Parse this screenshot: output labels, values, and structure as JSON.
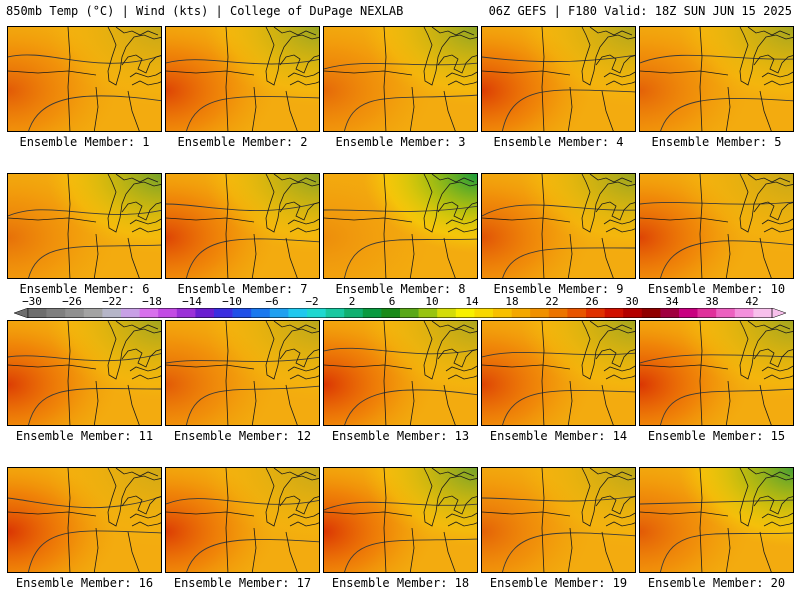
{
  "header": {
    "left": "850mb Temp (°C) | Wind (kts) | College of DuPage NEXLAB",
    "right": "06Z GEFS | F180 Valid: 18Z SUN JUN 15 2025"
  },
  "colorbar": {
    "labels": [
      "−30",
      "−26",
      "−22",
      "−18",
      "−14",
      "−10",
      "−6",
      "−2",
      "2",
      "6",
      "10",
      "14",
      "18",
      "22",
      "26",
      "30",
      "34",
      "38",
      "42"
    ],
    "colors": [
      "#6e6e6e",
      "#7f7f7f",
      "#909090",
      "#a3a3a3",
      "#b5b5c8",
      "#c8a0e6",
      "#d870ec",
      "#c24be4",
      "#9b30d8",
      "#6a1ed0",
      "#3b2fe0",
      "#2050e8",
      "#1a78ee",
      "#20a0f0",
      "#20c8ee",
      "#1ed8d0",
      "#18c8a0",
      "#10b070",
      "#0a9a40",
      "#1a8a1a",
      "#5aa818",
      "#98c410",
      "#d4dc08",
      "#f8f000",
      "#f8d800",
      "#f8c000",
      "#f4a800",
      "#f09000",
      "#ec7400",
      "#e85400",
      "#e03000",
      "#d01000",
      "#b40000",
      "#900000",
      "#a00040",
      "#c80080",
      "#e0309c",
      "#ec60c0",
      "#f490dc",
      "#f8c0ec"
    ]
  },
  "members": [
    {
      "label": "Ensemble Member: 1",
      "warm": 0.55,
      "cool": 0.2
    },
    {
      "label": "Ensemble Member: 2",
      "warm": 0.7,
      "cool": 0.4
    },
    {
      "label": "Ensemble Member: 3",
      "warm": 0.45,
      "cool": 0.45
    },
    {
      "label": "Ensemble Member: 4",
      "warm": 0.75,
      "cool": 0.3
    },
    {
      "label": "Ensemble Member: 5",
      "warm": 0.5,
      "cool": 0.35
    },
    {
      "label": "Ensemble Member: 6",
      "warm": 0.4,
      "cool": 0.55
    },
    {
      "label": "Ensemble Member: 7",
      "warm": 0.7,
      "cool": 0.45
    },
    {
      "label": "Ensemble Member: 8",
      "warm": 0.2,
      "cool": 0.95
    },
    {
      "label": "Ensemble Member: 9",
      "warm": 0.6,
      "cool": 0.4
    },
    {
      "label": "Ensemble Member: 10",
      "warm": 0.7,
      "cool": 0.2
    },
    {
      "label": "Ensemble Member: 11",
      "warm": 0.75,
      "cool": 0.35
    },
    {
      "label": "Ensemble Member: 12",
      "warm": 0.55,
      "cool": 0.25
    },
    {
      "label": "Ensemble Member: 13",
      "warm": 0.8,
      "cool": 0.3
    },
    {
      "label": "Ensemble Member: 14",
      "warm": 0.7,
      "cool": 0.35
    },
    {
      "label": "Ensemble Member: 15",
      "warm": 0.8,
      "cool": 0.35
    },
    {
      "label": "Ensemble Member: 16",
      "warm": 0.8,
      "cool": 0.15
    },
    {
      "label": "Ensemble Member: 17",
      "warm": 0.75,
      "cool": 0.2
    },
    {
      "label": "Ensemble Member: 18",
      "warm": 0.8,
      "cool": 0.55
    },
    {
      "label": "Ensemble Member: 19",
      "warm": 0.5,
      "cool": 0.25
    },
    {
      "label": "Ensemble Member: 20",
      "warm": 0.55,
      "cool": 0.75
    }
  ]
}
